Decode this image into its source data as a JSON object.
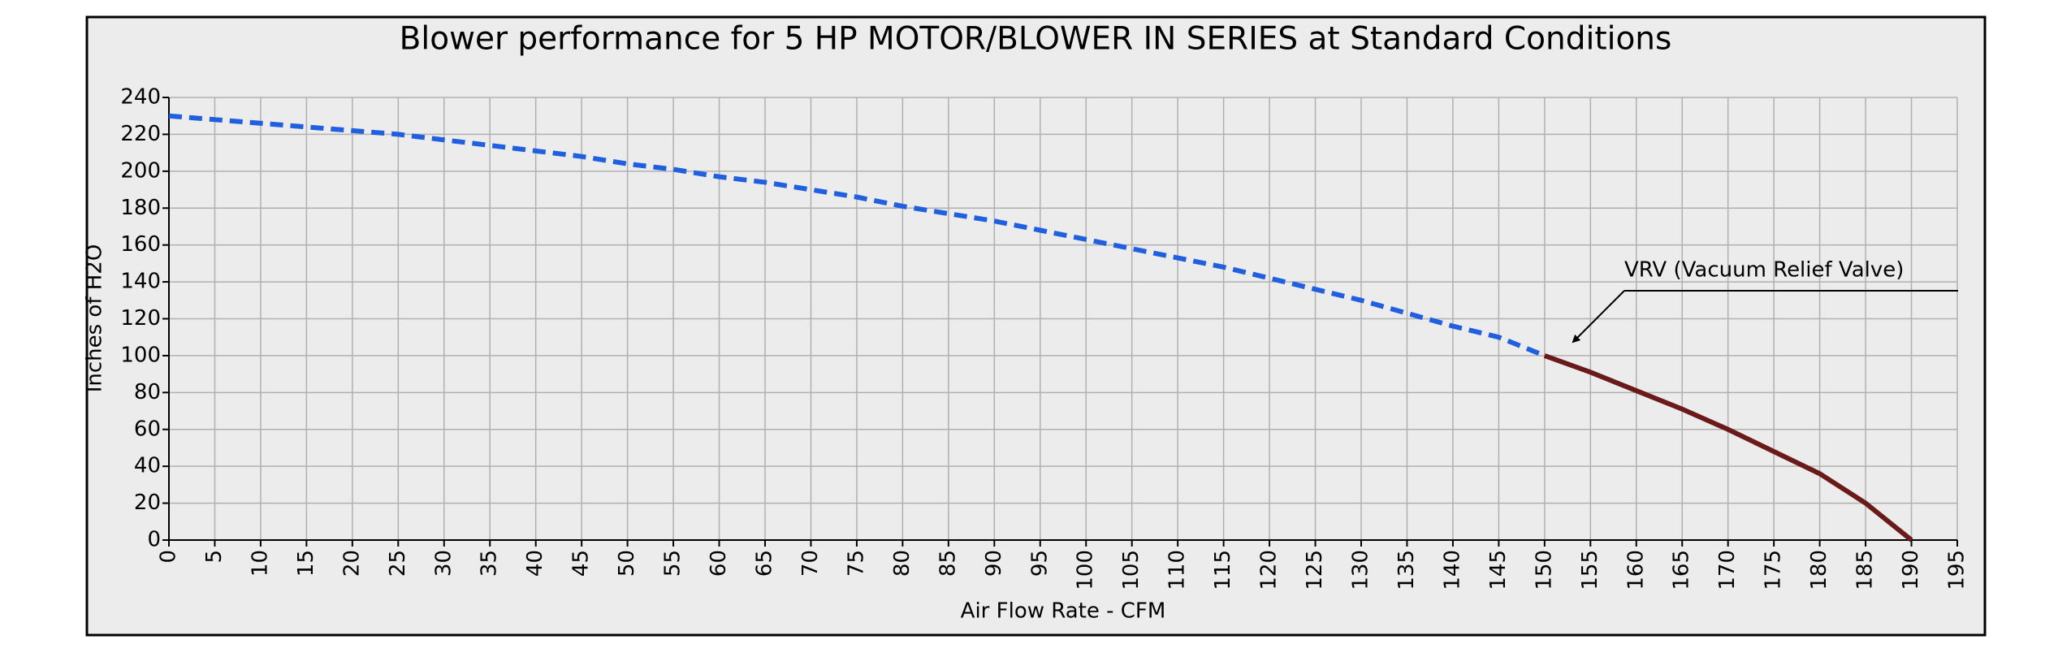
{
  "chart_data": {
    "type": "line",
    "title": "Blower performance for 5 HP MOTOR/BLOWER IN SERIES at Standard Conditions",
    "x_label": "Air Flow Rate - CFM",
    "y_label": "Inches of H2O",
    "annotation": "VRV (Vacuum Relief Valve)",
    "grid": true,
    "xlim": [
      0,
      195
    ],
    "ylim": [
      0,
      240
    ],
    "xticks": [
      0,
      5,
      10,
      15,
      20,
      25,
      30,
      35,
      40,
      45,
      50,
      55,
      60,
      65,
      70,
      75,
      80,
      85,
      90,
      95,
      100,
      105,
      110,
      115,
      120,
      125,
      130,
      135,
      140,
      145,
      150,
      155,
      160,
      165,
      170,
      175,
      180,
      185,
      190,
      195
    ],
    "yticks": [
      0,
      20,
      40,
      60,
      80,
      100,
      120,
      140,
      160,
      180,
      200,
      220,
      240
    ],
    "series": [
      {
        "color": "#1f5fe0",
        "dashed": true,
        "x": [
          0,
          5,
          10,
          15,
          20,
          25,
          30,
          35,
          40,
          45,
          50,
          55,
          60,
          65,
          70,
          75,
          80,
          85,
          90,
          95,
          100,
          105,
          110,
          115,
          120,
          125,
          130,
          135,
          140,
          145,
          150
        ],
        "values": [
          230,
          228,
          226,
          224,
          222,
          220,
          217,
          214,
          211,
          208,
          204,
          201,
          197,
          194,
          190,
          186,
          181,
          177,
          173,
          168,
          163,
          158,
          153,
          148,
          142,
          136,
          130,
          123,
          116,
          110,
          100
        ]
      },
      {
        "color": "#6b1a1a",
        "dashed": false,
        "x": [
          150,
          155,
          160,
          165,
          170,
          175,
          180,
          185,
          190
        ],
        "values": [
          100,
          91,
          81,
          71,
          60,
          48,
          36,
          20,
          0
        ]
      }
    ]
  }
}
